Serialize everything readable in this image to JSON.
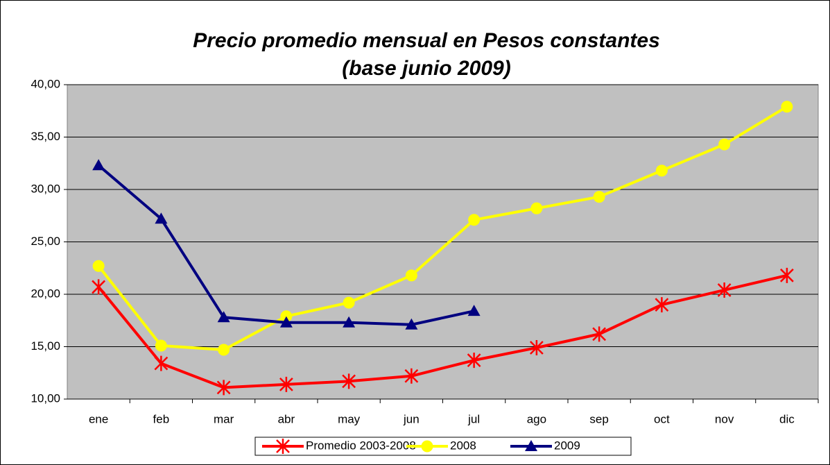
{
  "chart_data": {
    "type": "line",
    "title": [
      "Precio promedio mensual en Pesos constantes",
      "(base junio 2009)"
    ],
    "categories": [
      "ene",
      "feb",
      "mar",
      "abr",
      "may",
      "jun",
      "jul",
      "ago",
      "sep",
      "oct",
      "nov",
      "dic"
    ],
    "series": [
      {
        "name": "Promedio 2003-2008",
        "color": "#ff0000",
        "marker": "asterisk",
        "values": [
          20.7,
          13.4,
          11.1,
          11.4,
          11.7,
          12.2,
          13.7,
          14.9,
          16.2,
          19.0,
          20.4,
          21.8
        ]
      },
      {
        "name": "2008",
        "color": "#ffff00",
        "marker": "circle",
        "values": [
          22.7,
          15.1,
          14.7,
          17.9,
          19.2,
          21.8,
          27.1,
          28.2,
          29.3,
          31.8,
          34.3,
          37.9
        ]
      },
      {
        "name": "2009",
        "color": "#000080",
        "marker": "triangle",
        "values": [
          32.3,
          27.2,
          17.8,
          17.3,
          17.3,
          17.1,
          18.4,
          null,
          null,
          null,
          null,
          null
        ]
      }
    ],
    "ylim": [
      10,
      40
    ],
    "yticks": [
      {
        "value": 10,
        "label": "10,00"
      },
      {
        "value": 15,
        "label": "15,00"
      },
      {
        "value": 20,
        "label": "20,00"
      },
      {
        "value": 25,
        "label": "25,00"
      },
      {
        "value": 30,
        "label": "30,00"
      },
      {
        "value": 35,
        "label": "35,00"
      },
      {
        "value": 40,
        "label": "40,00"
      }
    ],
    "grid": true,
    "legend": "bottom"
  }
}
